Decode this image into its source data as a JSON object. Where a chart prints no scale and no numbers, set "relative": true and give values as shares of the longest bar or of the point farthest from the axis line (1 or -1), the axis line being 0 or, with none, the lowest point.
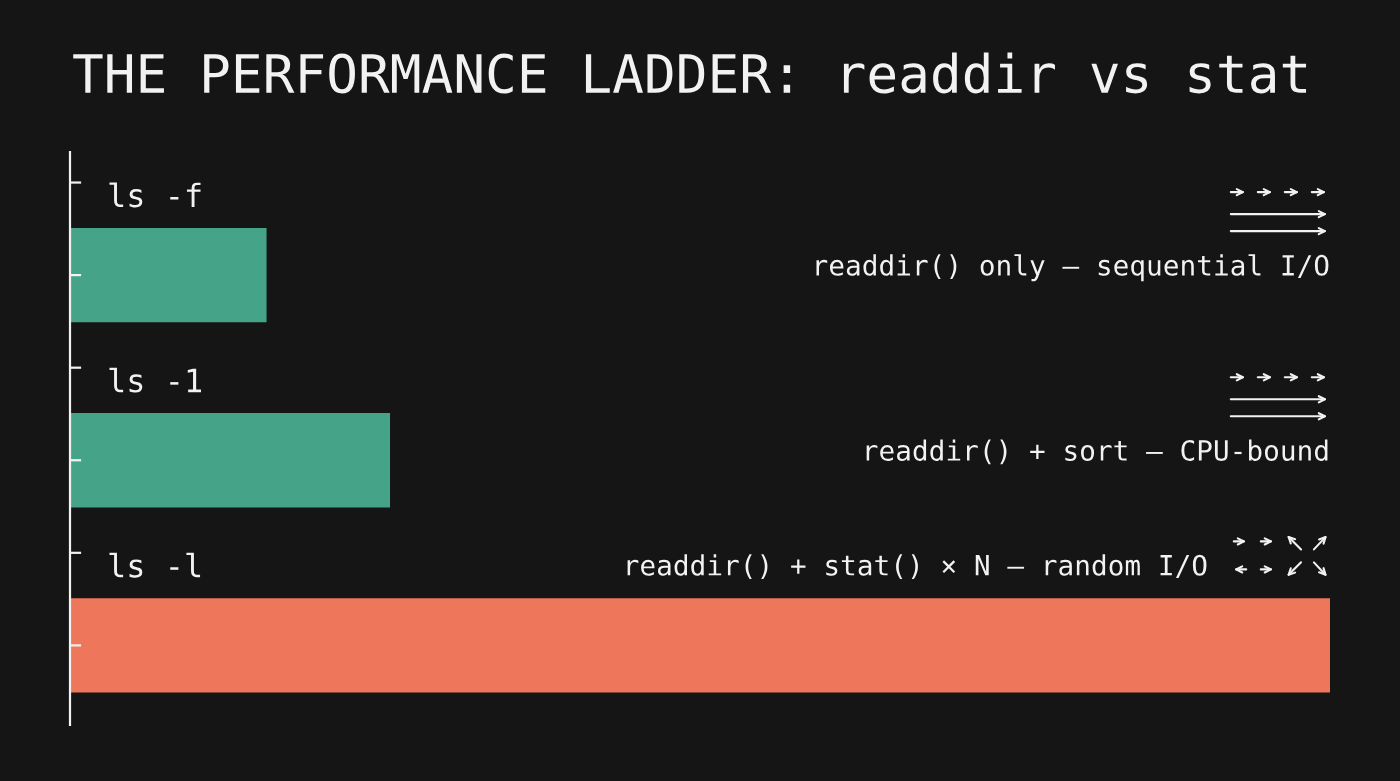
{
  "chart_data": {
    "type": "bar",
    "orientation": "horizontal",
    "relative": true,
    "title": "THE PERFORMANCE LADDER: readdir vs stat",
    "categories": [
      "ls -f",
      "ls -1",
      "ls -l"
    ],
    "values": [
      0.156,
      0.254,
      1
    ],
    "colors": [
      "#45a487",
      "#45a487",
      "#ee765a"
    ],
    "annotations": [
      "readdir() only — sequential I/O",
      "readdir() + sort — CPU-bound",
      "readdir() + stat() × N — random I/O"
    ],
    "grid": false
  }
}
